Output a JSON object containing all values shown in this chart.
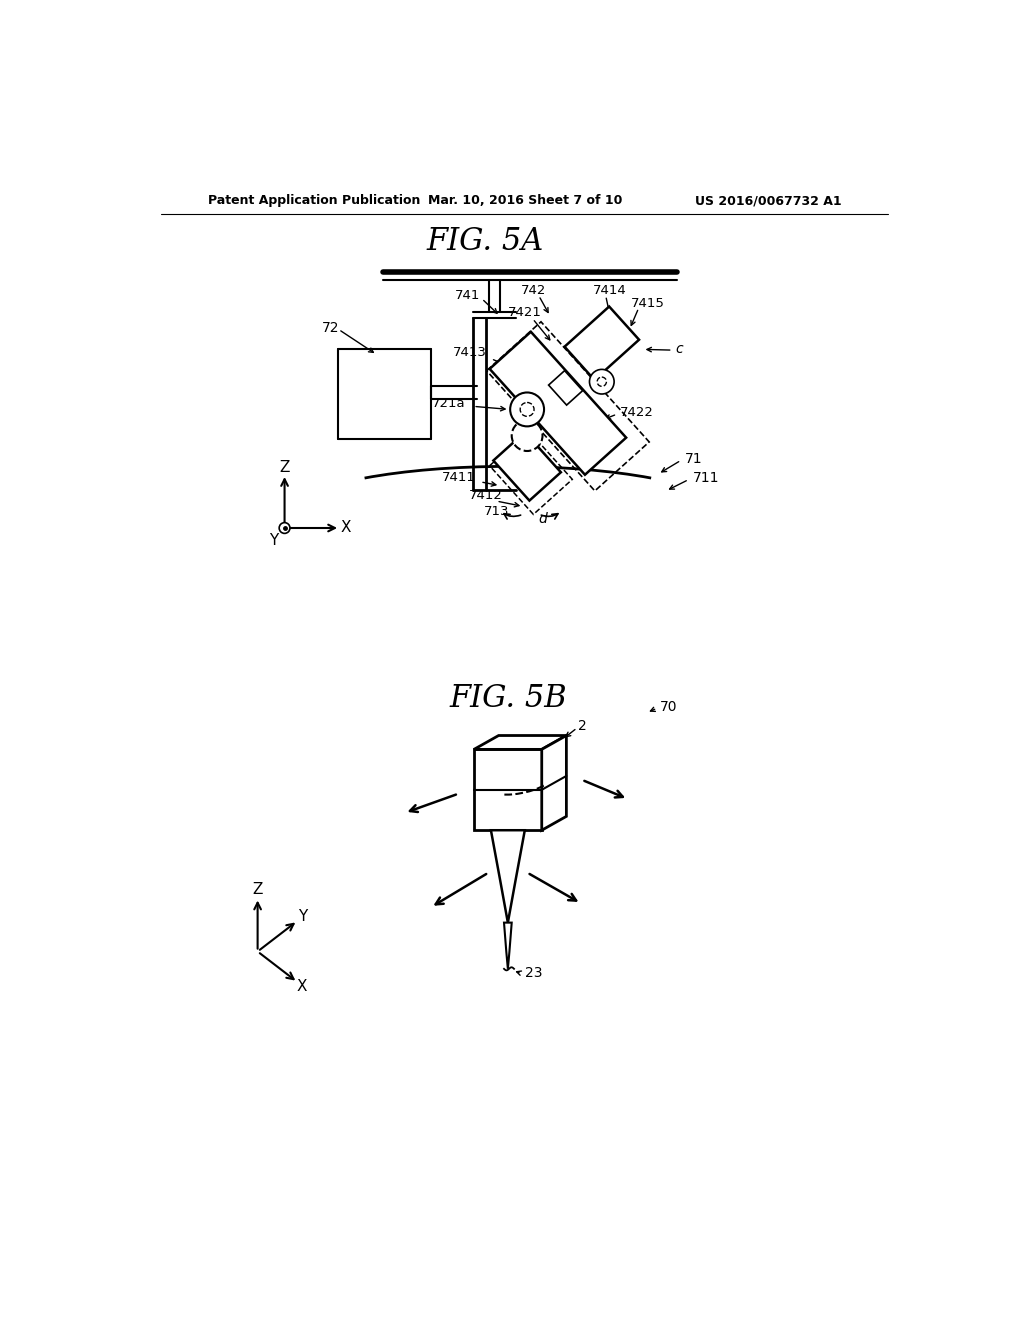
{
  "bg_color": "#ffffff",
  "header_left": "Patent Application Publication",
  "header_center": "Mar. 10, 2016 Sheet 7 of 10",
  "header_right": "US 2016/0067732 A1",
  "fig5a_title": "FIG. 5A",
  "fig5b_title": "FIG. 5B"
}
